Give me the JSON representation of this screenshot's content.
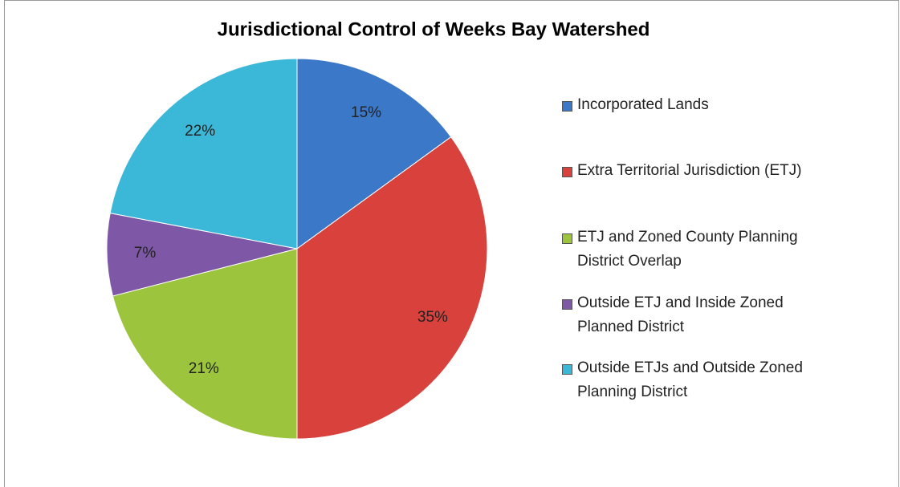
{
  "chart_data": {
    "type": "pie",
    "title": "Jurisdictional Control of Weeks Bay Watershed",
    "categories": [
      "Incorporated Lands",
      "Extra Territorial Jurisdiction (ETJ)",
      "ETJ and Zoned County Planning District Overlap",
      "Outside ETJ and Inside Zoned Planned District",
      "Outside ETJs and Outside Zoned Planning District"
    ],
    "values": [
      15,
      35,
      21,
      7,
      22
    ],
    "value_labels": [
      "15%",
      "35%",
      "21%",
      "7%",
      "22%"
    ],
    "colors": [
      "#3b78c8",
      "#d8413c",
      "#9cc53d",
      "#7e58a6",
      "#3bb7d8"
    ]
  }
}
